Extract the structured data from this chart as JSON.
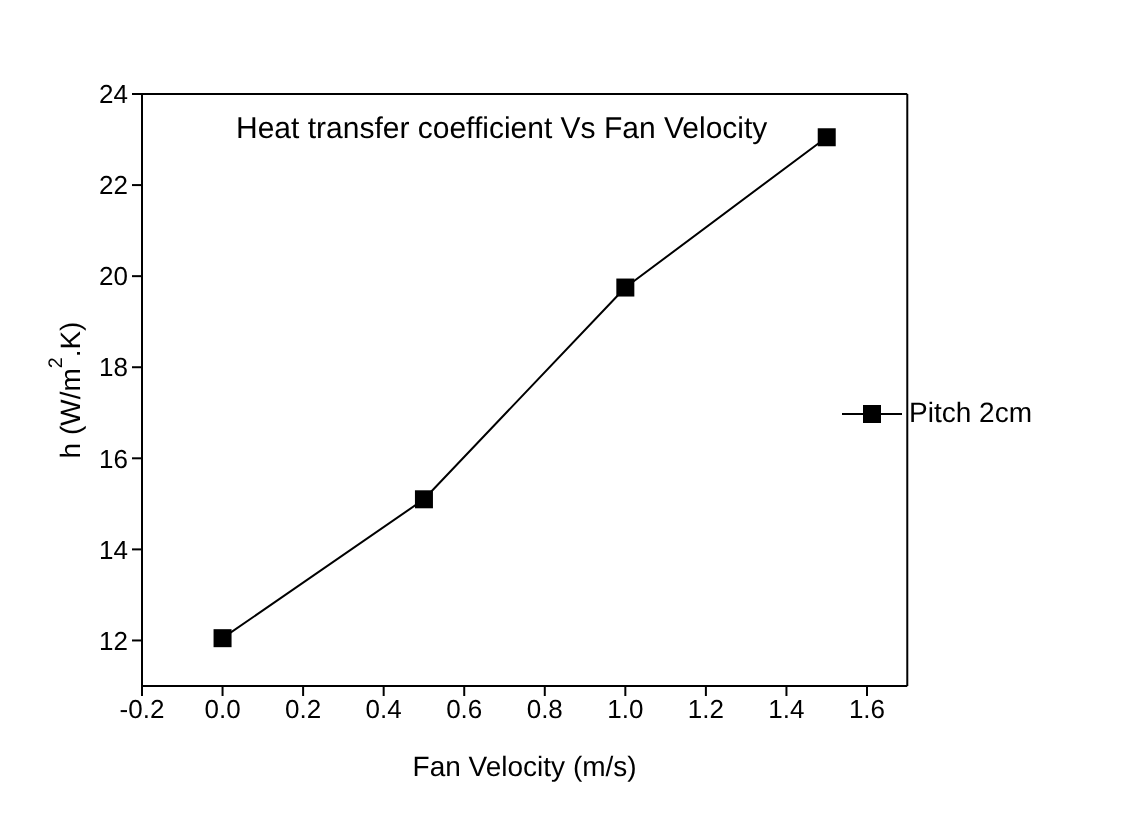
{
  "chart_data": {
    "type": "line",
    "xlabel": "Fan Velocity (m/s)",
    "ylabel": "h (W/m$^{2}$.K)",
    "annotations": [
      "Heat transfer coefficient Vs Fan Velocity"
    ],
    "x": [
      0,
      0.5,
      1,
      1.5
    ],
    "series": [
      {
        "name": "Pitch 2cm",
        "color": "#000000",
        "values": [
          12.05,
          15.1,
          19.75,
          23.05
        ]
      }
    ],
    "xlim": [
      -0.2,
      1.7
    ],
    "xticks": [
      {
        "value": -0.2,
        "label": "-0.2"
      },
      {
        "value": 0,
        "label": "0.0"
      },
      {
        "value": 0.2,
        "label": "0.2"
      },
      {
        "value": 0.4,
        "label": "0.4"
      },
      {
        "value": 0.6,
        "label": "0.6"
      },
      {
        "value": 0.8,
        "label": "0.8"
      },
      {
        "value": 1,
        "label": "1.0"
      },
      {
        "value": 1.2,
        "label": "1.2"
      },
      {
        "value": 1.4,
        "label": "1.4"
      },
      {
        "value": 1.6,
        "label": "1.6"
      }
    ],
    "ylim": [
      11,
      24
    ],
    "yticks": [
      12,
      14,
      16,
      18,
      20,
      22,
      24
    ],
    "grid": false,
    "legend": "right",
    "marker": "square",
    "line_style": "solid"
  }
}
